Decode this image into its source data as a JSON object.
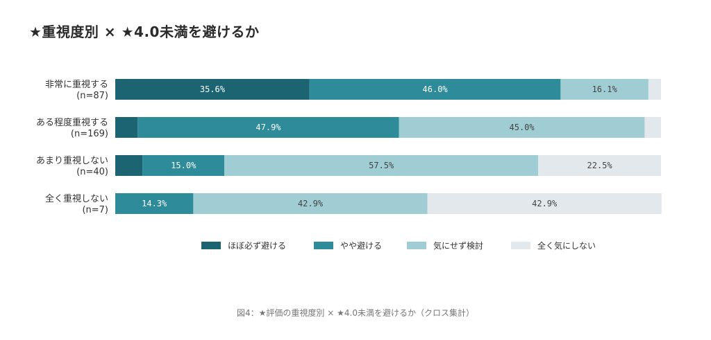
{
  "colors": {
    "series": [
      "#1c6472",
      "#2e8b9a",
      "#9fcdd3",
      "#e2e8ec"
    ],
    "label_dark": "#ffffff",
    "label_light": "#444444"
  },
  "chart_data": {
    "type": "bar",
    "orientation": "horizontal",
    "stacked": true,
    "title": "★重視度別 × ★4.0未満を避けるか",
    "caption": "図4：★評価の重視度別 × ★4.0未満を避けるか（クロス集計）",
    "categories": [
      [
        "非常に重視する",
        "(n=87)"
      ],
      [
        "ある程度重視する",
        "(n=169)"
      ],
      [
        "あまり重視しない",
        "(n=40)"
      ],
      [
        "全く重視しない",
        "(n=7)"
      ]
    ],
    "series": [
      {
        "name": "ほぼ必ず避ける",
        "values": [
          35.6,
          4.1,
          5.0,
          0.0
        ],
        "labels": [
          "35.6%",
          "",
          "",
          ""
        ]
      },
      {
        "name": "やや避ける",
        "values": [
          46.0,
          47.9,
          15.0,
          14.3
        ],
        "labels": [
          "46.0%",
          "47.9%",
          "15.0%",
          "14.3%"
        ]
      },
      {
        "name": "気にせず検討",
        "values": [
          16.1,
          45.0,
          57.5,
          42.9
        ],
        "labels": [
          "16.1%",
          "45.0%",
          "57.5%",
          "42.9%"
        ]
      },
      {
        "name": "全く気にしない",
        "values": [
          2.3,
          3.0,
          22.5,
          42.9
        ],
        "labels": [
          "",
          "",
          "22.5%",
          "42.9%"
        ]
      }
    ],
    "xlim": [
      0,
      100
    ],
    "grid": false,
    "legend": "bottom"
  }
}
